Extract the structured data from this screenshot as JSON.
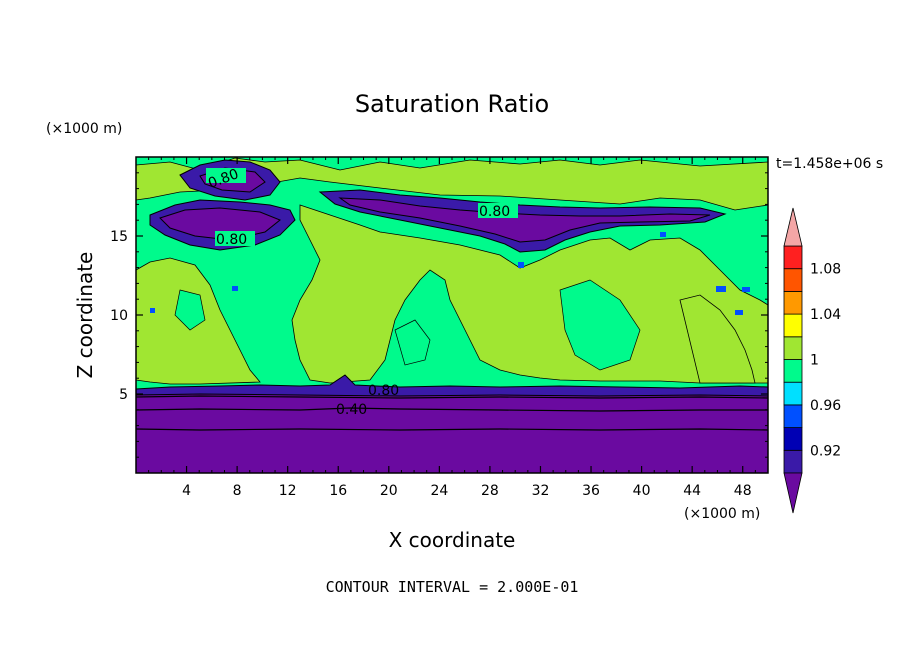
{
  "chart_data": {
    "type": "heatmap",
    "title": "Saturation Ratio",
    "xlabel": "X coordinate",
    "ylabel": "Z coordinate",
    "x_unit": "(×1000 m)",
    "y_unit": "(×1000 m)",
    "time_label": "t=1.458e+06 s",
    "footer": "CONTOUR INTERVAL = 2.000E-01",
    "xlim": [
      0,
      50
    ],
    "ylim": [
      0,
      20
    ],
    "x_ticks": [
      4,
      8,
      12,
      16,
      20,
      24,
      28,
      32,
      36,
      40,
      44,
      48
    ],
    "y_ticks": [
      5,
      10,
      15
    ],
    "contour_labels": [
      {
        "text": "0.80",
        "x": 28,
        "z": 16.5
      },
      {
        "text": "0.80",
        "x": 7.5,
        "z": 14.7
      },
      {
        "text": "0.80",
        "x": 7.5,
        "z": 18.6
      },
      {
        "text": "0.80",
        "x": 19.5,
        "z": 5.2
      },
      {
        "text": "0.40",
        "x": 17.5,
        "z": 4.1
      }
    ],
    "colorbar": {
      "tick_labels": [
        "0.92",
        "0.96",
        "1",
        "1.04",
        "1.08"
      ],
      "tick_values": [
        0.92,
        0.96,
        1.0,
        1.04,
        1.08
      ],
      "levels": [
        0.9,
        0.92,
        0.94,
        0.96,
        0.98,
        1.0,
        1.02,
        1.04,
        1.06,
        1.08,
        1.1
      ],
      "colors": [
        "#3a1aa8",
        "#0000b4",
        "#0050ff",
        "#00e0ff",
        "#00fa8c",
        "#a0e632",
        "#ffff00",
        "#ff9900",
        "#ff5500",
        "#ff2020"
      ],
      "under_color": "#6a0aa0",
      "over_color": "#f4a6a6"
    },
    "regions": [
      {
        "level": 0.5,
        "z_min": 0,
        "z_max": 5.3,
        "desc": "deep purple layer below ~5 km"
      },
      {
        "level": 0.99,
        "z_min": 5.3,
        "z_max": 19.5,
        "desc": "mostly green background"
      },
      {
        "level": 1.01,
        "desc": "yellow-green cloud regions"
      },
      {
        "level": 0.6,
        "desc": "purple dry layers near z 15-19 km"
      }
    ],
    "contour_lines_z": [
      2.7,
      3.9,
      4.7,
      5.2
    ]
  }
}
